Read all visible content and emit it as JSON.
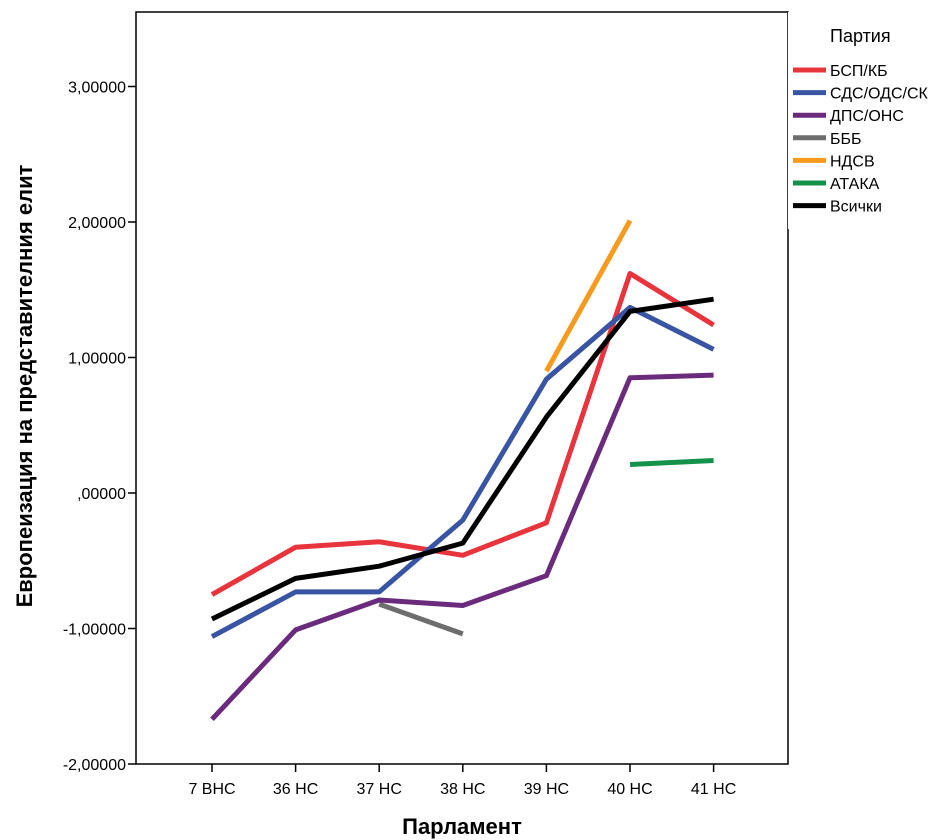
{
  "chart_data": {
    "type": "line",
    "title": "",
    "xlabel": "Парламент",
    "ylabel": "Европеизация на представителния елит",
    "categories": [
      "7 ВНС",
      "36 НС",
      "37 НС",
      "38 НС",
      "39 НС",
      "40 НС",
      "41 НС"
    ],
    "y_ticks": [
      "-2,00000",
      "-1,00000",
      ",00000",
      "1,00000",
      "2,00000",
      "3,00000"
    ],
    "y_tick_values": [
      -2,
      -1,
      0,
      1,
      2,
      3
    ],
    "ylim": [
      -2,
      3.5
    ],
    "grid": false,
    "legend_position": "right",
    "legend_title": "Партия",
    "series": [
      {
        "name": "БСП/КБ",
        "color": "#e8343c",
        "values": [
          -0.75,
          -0.4,
          -0.36,
          -0.46,
          -0.22,
          1.62,
          1.24
        ]
      },
      {
        "name": "СДС/ОДС/СК",
        "color": "#3a54a4",
        "values": [
          -1.06,
          -0.73,
          -0.73,
          -0.2,
          0.84,
          1.37,
          1.06
        ]
      },
      {
        "name": "ДПС/ОНС",
        "color": "#6b2b7c",
        "values": [
          -1.67,
          -1.01,
          -0.79,
          -0.83,
          -0.61,
          0.85,
          0.87
        ]
      },
      {
        "name": "БББ",
        "color": "#6d6d6d",
        "values": [
          null,
          null,
          -0.82,
          -1.04,
          null,
          null,
          null
        ]
      },
      {
        "name": "НДСВ",
        "color": "#f79b1f",
        "values": [
          null,
          null,
          null,
          null,
          0.9,
          2.01,
          null
        ]
      },
      {
        "name": "АТАКА",
        "color": "#14914a",
        "values": [
          null,
          null,
          null,
          null,
          null,
          0.21,
          0.24
        ]
      },
      {
        "name": "Всички",
        "color": "#000000",
        "values": [
          -0.93,
          -0.63,
          -0.54,
          -0.37,
          0.56,
          1.34,
          1.43
        ]
      }
    ]
  }
}
